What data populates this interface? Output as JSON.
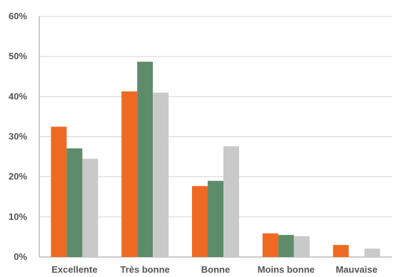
{
  "chart_data": {
    "type": "bar",
    "title": "",
    "xlabel": "",
    "ylabel": "",
    "categories": [
      "Excellente",
      "Très bonne",
      "Bonne",
      "Moins bonne",
      "Mauvaise"
    ],
    "series": [
      {
        "color": "#EE6A22",
        "values": [
          32.5,
          41.3,
          17.7,
          5.9,
          3.0
        ]
      },
      {
        "color": "#5E8C6A",
        "values": [
          27.1,
          48.7,
          19.0,
          5.5,
          0.0
        ]
      },
      {
        "color": "#C9C9C9",
        "values": [
          24.5,
          41.0,
          27.6,
          5.2,
          2.1
        ]
      }
    ],
    "ylim": [
      0,
      60
    ],
    "yticks": [
      0,
      10,
      20,
      30,
      40,
      50,
      60
    ],
    "ytick_labels": [
      "0%",
      "10%",
      "20%",
      "30%",
      "40%",
      "50%",
      "60%"
    ],
    "grid": true,
    "legend": false
  }
}
